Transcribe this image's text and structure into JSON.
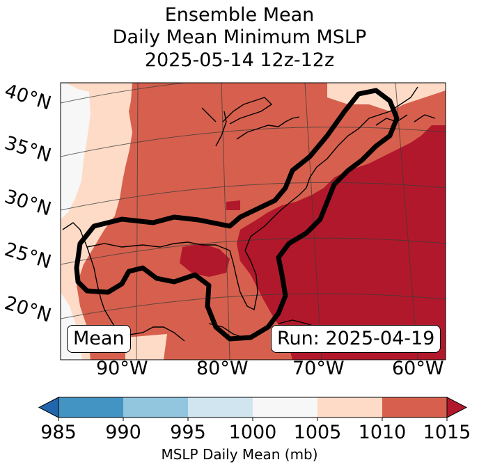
{
  "title": {
    "line1": "Ensemble Mean",
    "line2": "Daily Mean Minimum MSLP",
    "line3": "2025-05-14 12z-12z"
  },
  "map": {
    "lat_labels": [
      "40°N",
      "35°N",
      "30°N",
      "25°N",
      "20°N"
    ],
    "lon_labels": [
      "90°W",
      "80°W",
      "70°W",
      "60°W"
    ],
    "mean_box": "Mean",
    "run_box": "Run: 2025-04-19"
  },
  "colorbar": {
    "label": "MSLP Daily Mean (mb)",
    "ticks": [
      "985",
      "990",
      "995",
      "1000",
      "1005",
      "1010",
      "1015"
    ],
    "bins": [
      {
        "range": "985-990",
        "color": "#4393c3"
      },
      {
        "range": "990-995",
        "color": "#92c5de"
      },
      {
        "range": "995-1000",
        "color": "#d1e5f0"
      },
      {
        "range": "1000-1005",
        "color": "#f7f7f7"
      },
      {
        "range": "1005-1010",
        "color": "#fddbc7"
      },
      {
        "range": "1010-1015",
        "color": "#d6604d"
      }
    ],
    "under_color": "#2166ac",
    "over_color": "#b2182b"
  },
  "field_colors": {
    "lt1005": "#f7f7f7",
    "1005_1010": "#fddbc7",
    "1010_1015": "#d6604d",
    "gt1015": "#b2182b"
  }
}
